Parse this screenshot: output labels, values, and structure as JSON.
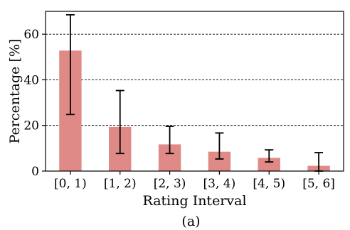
{
  "chart_data": {
    "type": "bar",
    "categories": [
      "[0, 1)",
      "[1, 2)",
      "[2, 3)",
      "[3, 4)",
      "[4, 5)",
      "[5, 6]"
    ],
    "values": [
      52.8,
      19.3,
      11.7,
      8.5,
      5.8,
      2.3
    ],
    "error_low": [
      24.8,
      7.7,
      7.7,
      5.3,
      4.0,
      0.0
    ],
    "error_high": [
      68.5,
      35.3,
      19.6,
      16.7,
      9.3,
      8.1
    ],
    "xlabel": "Rating Interval",
    "ylabel": "Percentage [%]",
    "ylim": [
      0,
      70
    ],
    "yticks": [
      0,
      20,
      40,
      60
    ],
    "grid": "horizontal dashed at y ticks",
    "bar_color": "#e08a87",
    "errorbar_color": "#000000",
    "caption": "(a)"
  }
}
